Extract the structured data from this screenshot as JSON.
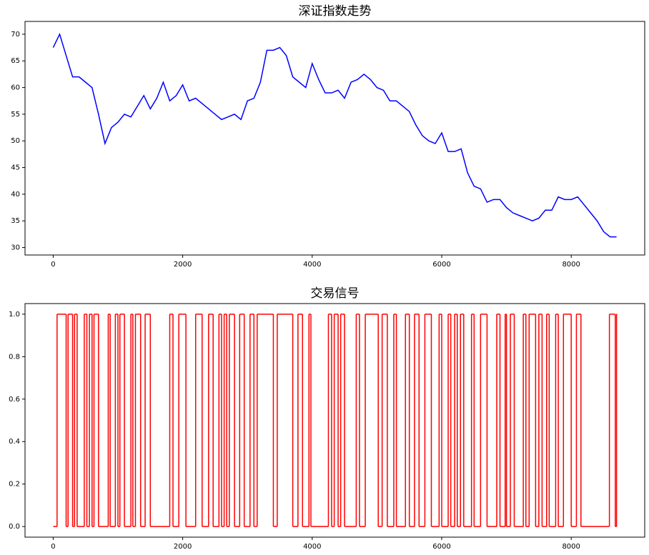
{
  "chart_data": [
    {
      "type": "line",
      "title": "深证指数走势",
      "color": "#0000ff",
      "x": [
        0,
        100,
        200,
        300,
        400,
        500,
        600,
        700,
        800,
        900,
        1000,
        1100,
        1200,
        1300,
        1400,
        1500,
        1600,
        1700,
        1800,
        1900,
        2000,
        2100,
        2200,
        2300,
        2400,
        2500,
        2600,
        2700,
        2800,
        2900,
        3000,
        3100,
        3200,
        3300,
        3400,
        3500,
        3600,
        3700,
        3800,
        3900,
        4000,
        4100,
        4200,
        4300,
        4400,
        4500,
        4600,
        4700,
        4800,
        4900,
        5000,
        5100,
        5200,
        5300,
        5400,
        5500,
        5600,
        5700,
        5800,
        5900,
        6000,
        6100,
        6200,
        6300,
        6400,
        6500,
        6600,
        6700,
        6800,
        6900,
        7000,
        7100,
        7200,
        7300,
        7400,
        7500,
        7600,
        7700,
        7800,
        7900,
        8000,
        8100,
        8200,
        8300,
        8400,
        8500,
        8600,
        8700
      ],
      "values": [
        67.5,
        70,
        66,
        62,
        62,
        61,
        60,
        55,
        49.5,
        52.5,
        53.5,
        55,
        54.5,
        56.5,
        58.5,
        56,
        58,
        61,
        57.5,
        58.5,
        60.5,
        57.5,
        58,
        57,
        56,
        55,
        54,
        54.5,
        55,
        54,
        57.5,
        58,
        61,
        67,
        67,
        67.5,
        66,
        62,
        61,
        60,
        64.5,
        61.5,
        59,
        59,
        59.5,
        58,
        61,
        61.5,
        62.5,
        61.5,
        60,
        59.5,
        57.5,
        57.5,
        56.5,
        55.5,
        53,
        51,
        50,
        49.5,
        51.5,
        48,
        48,
        48.5,
        44,
        41.5,
        41,
        38.5,
        39,
        39,
        37.5,
        36.5,
        36,
        35.5,
        35,
        35.5,
        37,
        37,
        39.5,
        39,
        39,
        39.5,
        38,
        36.5,
        35,
        33,
        32,
        32
      ],
      "xlim": [
        -435,
        9135
      ],
      "ylim": [
        28.6,
        72.4
      ],
      "xticks": [
        0,
        2000,
        4000,
        6000,
        8000
      ],
      "yticks": [
        30,
        35,
        40,
        45,
        50,
        55,
        60,
        65,
        70
      ]
    },
    {
      "type": "step",
      "title": "交易信号",
      "color": "#ff0000",
      "x": [
        0,
        60,
        200,
        230,
        300,
        330,
        370,
        480,
        520,
        560,
        600,
        630,
        700,
        850,
        880,
        960,
        1000,
        1030,
        1100,
        1200,
        1230,
        1270,
        1350,
        1420,
        1500,
        1800,
        1850,
        1940,
        2050,
        2200,
        2300,
        2400,
        2470,
        2560,
        2600,
        2640,
        2680,
        2720,
        2800,
        2880,
        2950,
        3040,
        3100,
        3150,
        3400,
        3460,
        3700,
        3780,
        3850,
        3950,
        3980,
        4250,
        4300,
        4340,
        4400,
        4440,
        4500,
        4680,
        4730,
        4820,
        5020,
        5080,
        5160,
        5260,
        5300,
        5440,
        5500,
        5580,
        5650,
        5740,
        5840,
        5960,
        6000,
        6100,
        6140,
        6200,
        6240,
        6290,
        6340,
        6460,
        6500,
        6600,
        6700,
        6850,
        6900,
        6980,
        7000,
        7060,
        7120,
        7260,
        7300,
        7350,
        7450,
        7500,
        7550,
        7620,
        7660,
        7760,
        7800,
        7880,
        8000,
        8080,
        8150,
        8590,
        8680,
        8700
      ],
      "values": [
        0,
        1,
        0,
        1,
        0,
        1,
        0,
        1,
        0,
        1,
        0,
        1,
        0,
        1,
        0,
        1,
        0,
        1,
        0,
        1,
        0,
        1,
        0,
        1,
        0,
        1,
        0,
        1,
        0,
        1,
        0,
        1,
        0,
        1,
        0,
        1,
        0,
        1,
        0,
        1,
        0,
        1,
        0,
        1,
        0,
        1,
        0,
        1,
        0,
        1,
        0,
        1,
        0,
        1,
        0,
        1,
        0,
        1,
        0,
        1,
        0,
        1,
        0,
        1,
        0,
        1,
        0,
        1,
        0,
        1,
        0,
        1,
        0,
        1,
        0,
        1,
        0,
        1,
        0,
        1,
        0,
        1,
        0,
        1,
        0,
        1,
        0,
        1,
        0,
        1,
        0,
        1,
        0,
        1,
        0,
        1,
        0,
        1,
        0,
        1,
        0,
        1,
        0,
        1,
        0,
        1
      ],
      "xlim": [
        -435,
        9135
      ],
      "ylim": [
        -0.05,
        1.05
      ],
      "xticks": [
        0,
        2000,
        4000,
        6000,
        8000
      ],
      "yticks": [
        {
          "value": 0,
          "label": "0.0"
        },
        0.2,
        0.4,
        0.6,
        0.8,
        {
          "value": 1,
          "label": "1.0"
        }
      ]
    }
  ]
}
